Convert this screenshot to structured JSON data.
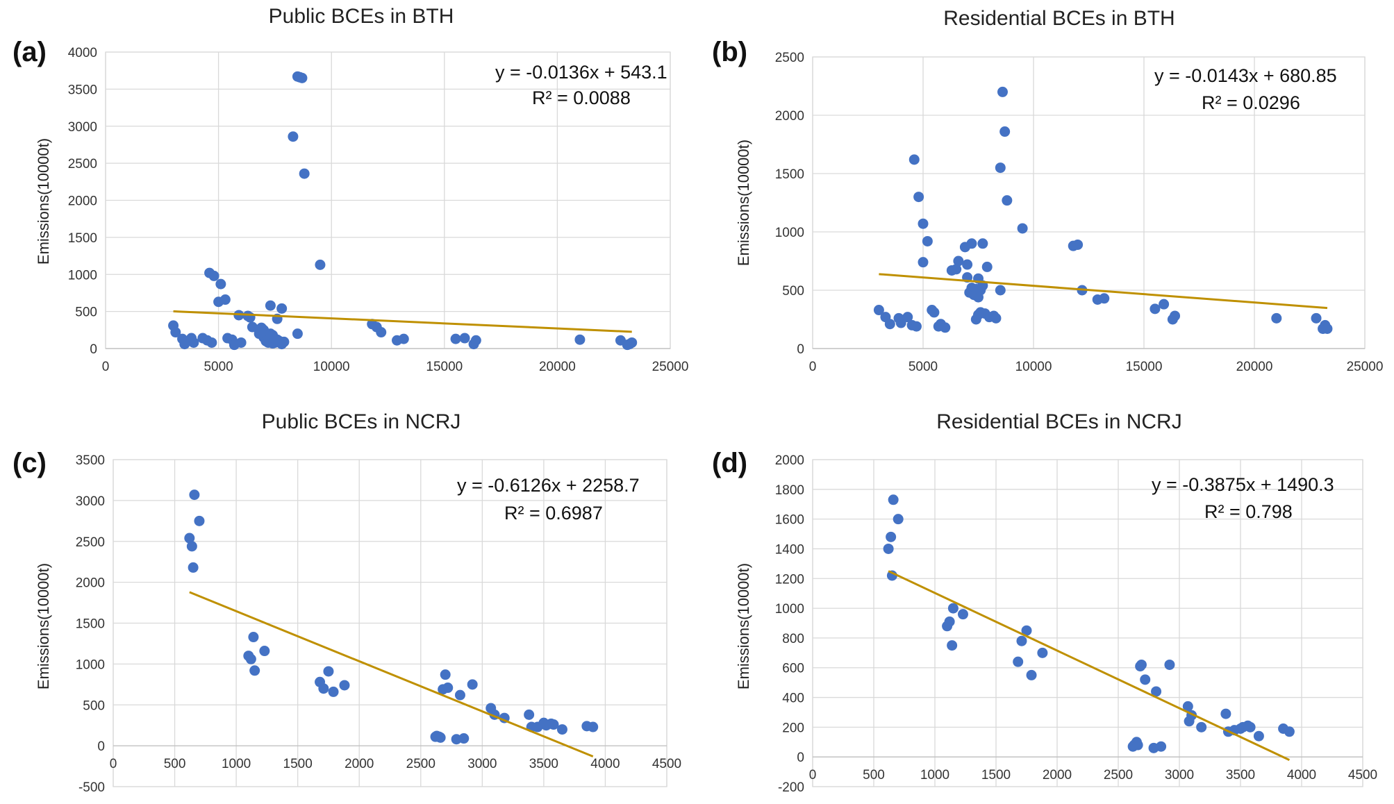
{
  "colors": {
    "points": "#4472c4",
    "trendline": "#bf9000",
    "grid": "#d9d9d9"
  },
  "chart_data": [
    {
      "type": "scatter",
      "panel": "(a)",
      "title": "Public BCEs in BTH",
      "ylabel": "Emissions(10000t)",
      "xlabel": "",
      "xlim": [
        0,
        25000
      ],
      "ylim": [
        0,
        4000
      ],
      "xticks": [
        0,
        5000,
        10000,
        15000,
        20000,
        25000
      ],
      "yticks": [
        0,
        500,
        1000,
        1500,
        2000,
        2500,
        3000,
        3500,
        4000
      ],
      "xtick_labels": [
        "0",
        "5000",
        "10000",
        "15000",
        "20000",
        "25000"
      ],
      "ytick_labels": [
        "0",
        "500",
        "1000",
        "1500",
        "2000",
        "2500",
        "3000",
        "3500",
        "4000"
      ],
      "equation": "y = -0.0136x + 543.1",
      "r2": "R² = 0.0088",
      "trendline": {
        "slope": -0.0136,
        "intercept": 543.1,
        "x_range": [
          3000,
          23300
        ]
      },
      "x": [
        3000,
        3100,
        3400,
        3500,
        3800,
        3900,
        4300,
        4500,
        4700,
        4600,
        4800,
        5000,
        5100,
        5300,
        5400,
        5600,
        5700,
        5900,
        6000,
        6300,
        6400,
        6500,
        6800,
        6900,
        7000,
        7100,
        7200,
        7300,
        7400,
        7500,
        7600,
        7700,
        7800,
        7900,
        7000,
        7100,
        7200,
        7300,
        7400,
        7500,
        7600,
        7800,
        8300,
        8500,
        8600,
        8700,
        8800,
        8500,
        9500,
        11800,
        12000,
        12200,
        12900,
        13200,
        15500,
        15900,
        16300,
        16400,
        21000,
        22800,
        23100,
        23200,
        23300
      ],
      "values": [
        310,
        220,
        130,
        60,
        140,
        80,
        140,
        110,
        80,
        1020,
        980,
        630,
        870,
        660,
        140,
        120,
        50,
        450,
        80,
        440,
        420,
        290,
        200,
        280,
        250,
        130,
        160,
        580,
        180,
        80,
        400,
        100,
        540,
        90,
        150,
        100,
        80,
        200,
        70,
        130,
        120,
        60,
        2860,
        3670,
        3660,
        3650,
        2360,
        200,
        1130,
        330,
        290,
        220,
        110,
        130,
        130,
        140,
        60,
        110,
        120,
        110,
        50,
        60,
        80
      ]
    },
    {
      "type": "scatter",
      "panel": "(b)",
      "title": "Residential BCEs in BTH",
      "ylabel": "Emissions(10000t)",
      "xlabel": "",
      "xlim": [
        0,
        25000
      ],
      "ylim": [
        0,
        2500
      ],
      "xticks": [
        0,
        5000,
        10000,
        15000,
        20000,
        25000
      ],
      "yticks": [
        0,
        500,
        1000,
        1500,
        2000,
        2500
      ],
      "xtick_labels": [
        "0",
        "5000",
        "10000",
        "15000",
        "20000",
        "25000"
      ],
      "ytick_labels": [
        "0",
        "500",
        "1000",
        "1500",
        "2000",
        "2500"
      ],
      "equation": "y = -0.0143x + 680.85",
      "r2": "R² = 0.0296",
      "trendline": {
        "slope": -0.0143,
        "intercept": 680.85,
        "x_range": [
          3000,
          23300
        ]
      },
      "x": [
        3000,
        3300,
        3500,
        3900,
        4000,
        4300,
        4500,
        4700,
        4800,
        4600,
        5000,
        5200,
        5000,
        5400,
        5500,
        5700,
        5800,
        6000,
        6300,
        6500,
        6600,
        6900,
        7000,
        7100,
        7200,
        7300,
        7400,
        7500,
        7600,
        7700,
        7000,
        7200,
        7400,
        7500,
        7600,
        7800,
        7900,
        7700,
        8000,
        7500,
        8200,
        8300,
        8500,
        8600,
        8700,
        8800,
        8500,
        9500,
        11800,
        12000,
        12200,
        12900,
        13200,
        15500,
        15900,
        16300,
        16400,
        21000,
        22800,
        23100,
        23200,
        23300
      ],
      "values": [
        330,
        270,
        210,
        260,
        220,
        270,
        200,
        190,
        1300,
        1620,
        1070,
        920,
        740,
        330,
        310,
        190,
        210,
        180,
        670,
        680,
        750,
        870,
        610,
        480,
        520,
        460,
        510,
        440,
        500,
        540,
        720,
        900,
        250,
        290,
        310,
        300,
        700,
        900,
        270,
        600,
        280,
        260,
        1550,
        2200,
        1860,
        1270,
        500,
        1030,
        880,
        890,
        500,
        420,
        430,
        340,
        380,
        250,
        280,
        260,
        260,
        170,
        200,
        170
      ]
    },
    {
      "type": "scatter",
      "panel": "(c)",
      "title": "Public BCEs in NCRJ",
      "ylabel": "Emissions(10000t)",
      "xlabel": "",
      "xlim": [
        0,
        4500
      ],
      "ylim": [
        -500,
        3500
      ],
      "xticks": [
        0,
        500,
        1000,
        1500,
        2000,
        2500,
        3000,
        3500,
        4000,
        4500
      ],
      "yticks": [
        -500,
        0,
        500,
        1000,
        1500,
        2000,
        2500,
        3000,
        3500
      ],
      "xtick_labels": [
        "0",
        "500",
        "1000",
        "1500",
        "2000",
        "2500",
        "3000",
        "3500",
        "4000",
        "4500"
      ],
      "ytick_labels": [
        "-500",
        "0",
        "500",
        "1000",
        "1500",
        "2000",
        "2500",
        "3000",
        "3500"
      ],
      "equation": "y = -0.6126x + 2258.7",
      "r2": "R² = 0.6987",
      "trendline": {
        "slope": -0.6126,
        "intercept": 2258.7,
        "x_range": [
          620,
          3900
        ]
      },
      "x": [
        620,
        640,
        650,
        660,
        700,
        1100,
        1120,
        1140,
        1150,
        1230,
        1680,
        1710,
        1750,
        1790,
        1880,
        2620,
        2630,
        2650,
        2660,
        2680,
        2700,
        2720,
        2790,
        2820,
        2850,
        2920,
        3070,
        3100,
        3180,
        3380,
        3400,
        3450,
        3500,
        3520,
        3560,
        3580,
        3650,
        3850,
        3900
      ],
      "values": [
        2540,
        2440,
        2180,
        3070,
        2750,
        1100,
        1060,
        1330,
        920,
        1160,
        780,
        700,
        910,
        660,
        740,
        110,
        120,
        110,
        100,
        690,
        870,
        710,
        80,
        620,
        90,
        750,
        460,
        380,
        340,
        380,
        230,
        230,
        280,
        250,
        270,
        260,
        200,
        240,
        230
      ]
    },
    {
      "type": "scatter",
      "panel": "(d)",
      "title": "Residential BCEs in NCRJ",
      "ylabel": "Emissions(10000t)",
      "xlabel": "",
      "xlim": [
        0,
        4500
      ],
      "ylim": [
        -200,
        2000
      ],
      "xticks": [
        0,
        500,
        1000,
        1500,
        2000,
        2500,
        3000,
        3500,
        4000,
        4500
      ],
      "yticks": [
        -200,
        0,
        200,
        400,
        600,
        800,
        1000,
        1200,
        1400,
        1600,
        1800,
        2000
      ],
      "xtick_labels": [
        "0",
        "500",
        "1000",
        "1500",
        "2000",
        "2500",
        "3000",
        "3500",
        "4000",
        "4500"
      ],
      "ytick_labels": [
        "-200",
        "0",
        "200",
        "400",
        "600",
        "800",
        "1000",
        "1200",
        "1400",
        "1600",
        "1800",
        "2000"
      ],
      "equation": "y = -0.3875x + 1490.3",
      "r2": "R² = 0.798",
      "trendline": {
        "slope": -0.3875,
        "intercept": 1490.3,
        "x_range": [
          620,
          3900
        ]
      },
      "x": [
        620,
        640,
        650,
        660,
        700,
        1100,
        1120,
        1140,
        1150,
        1230,
        1680,
        1710,
        1750,
        1790,
        1880,
        2620,
        2630,
        2650,
        2660,
        2680,
        2690,
        2720,
        2790,
        2810,
        2850,
        2920,
        3070,
        3080,
        3100,
        3180,
        3380,
        3400,
        3450,
        3500,
        3520,
        3560,
        3580,
        3650,
        3850,
        3900
      ],
      "values": [
        1400,
        1480,
        1220,
        1730,
        1600,
        880,
        910,
        750,
        1000,
        960,
        640,
        780,
        850,
        550,
        700,
        70,
        80,
        100,
        80,
        610,
        620,
        520,
        60,
        440,
        70,
        620,
        340,
        240,
        280,
        200,
        290,
        170,
        180,
        190,
        200,
        210,
        200,
        140,
        190,
        170
      ]
    }
  ]
}
